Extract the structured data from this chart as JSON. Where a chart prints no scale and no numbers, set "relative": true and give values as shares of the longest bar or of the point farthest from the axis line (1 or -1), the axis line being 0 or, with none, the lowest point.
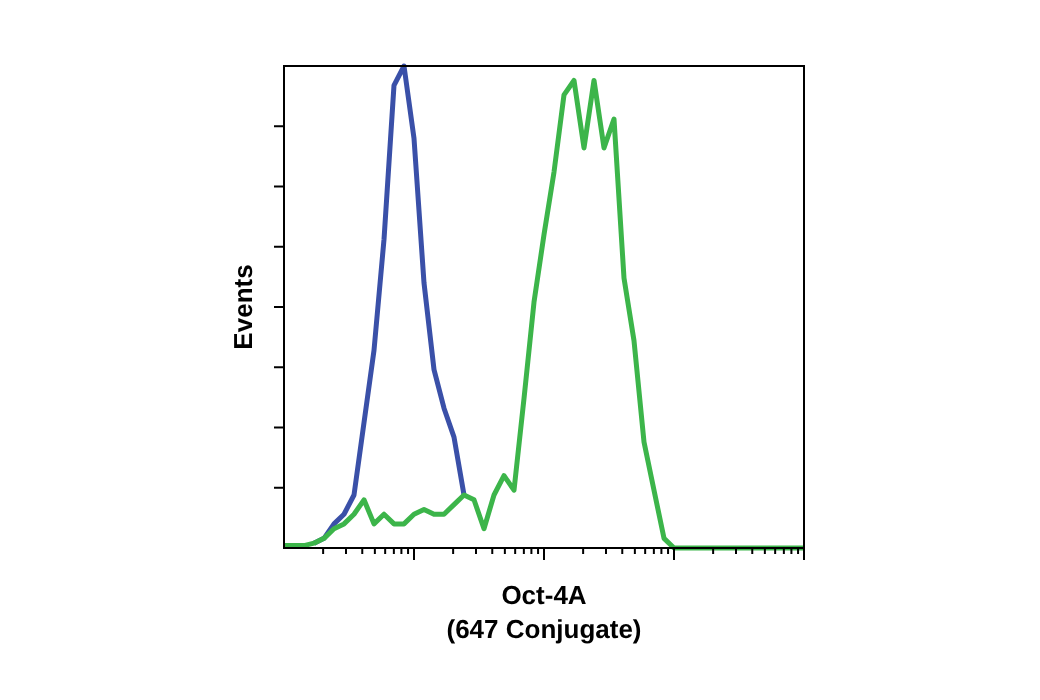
{
  "chart_data": {
    "type": "line",
    "relative": true,
    "ylabel": "Events",
    "xlabel": "Oct-4A\n(647 Conjugate)",
    "categories": [
      null,
      null,
      null,
      null,
      null,
      null,
      null,
      null,
      null,
      null,
      null,
      null,
      null,
      null,
      null,
      null,
      null,
      null,
      null,
      null,
      null,
      null,
      null,
      null,
      null,
      null,
      null,
      null,
      null,
      null,
      null,
      null,
      null,
      null,
      null,
      null,
      null,
      null,
      null,
      null,
      null,
      null,
      null,
      null,
      null,
      null,
      null,
      null,
      null,
      null,
      null,
      null,
      null
    ],
    "series": [
      {
        "color": "#3a50a8",
        "values": [
          null,
          null,
          null,
          0.01,
          0.02,
          0.05,
          0.07,
          0.11,
          0.26,
          0.41,
          0.64,
          0.96,
          1.0,
          0.85,
          0.55,
          0.37,
          0.29,
          0.23,
          0.11,
          null,
          null,
          null,
          null,
          null,
          null,
          null,
          null,
          null,
          null,
          null,
          null,
          null,
          null,
          null,
          null,
          null,
          null,
          null,
          null,
          null,
          null,
          null,
          null,
          null,
          null,
          null,
          null,
          null,
          null,
          null,
          null,
          null,
          null
        ]
      },
      {
        "color": "#3cb54a",
        "values": [
          0.005,
          0.005,
          0.005,
          0.01,
          0.02,
          0.04,
          0.05,
          0.07,
          0.1,
          0.05,
          0.07,
          0.05,
          0.05,
          0.07,
          0.08,
          0.07,
          0.07,
          0.09,
          0.11,
          0.1,
          0.04,
          0.11,
          0.15,
          0.12,
          0.31,
          0.51,
          0.65,
          0.78,
          0.94,
          0.97,
          0.83,
          0.97,
          0.83,
          0.89,
          0.56,
          0.43,
          0.22,
          0.12,
          0.02,
          0,
          0,
          0,
          0,
          0,
          0,
          0,
          0,
          0,
          0,
          0,
          0,
          0,
          0
        ]
      }
    ],
    "grid": false,
    "marker": "none",
    "line_style": "solid"
  }
}
